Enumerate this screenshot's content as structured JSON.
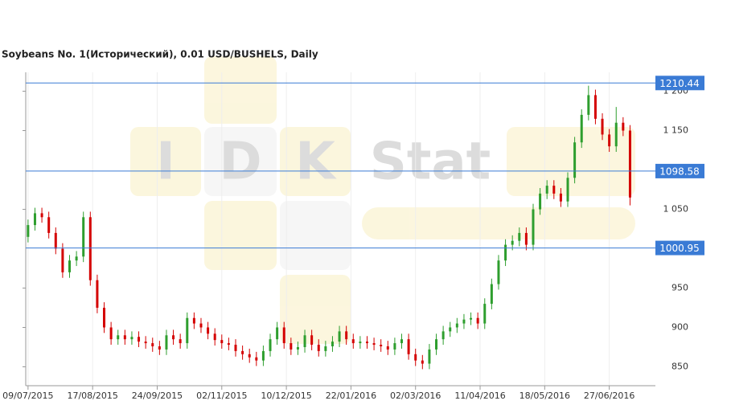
{
  "chart_data": {
    "type": "candlestick",
    "title": "Soybeans  No. 1(Исторический), 0.01 USD/BUSHELS, Daily",
    "watermark": [
      "I",
      "D",
      "K",
      "Stat"
    ],
    "xlim": [
      -1,
      272
    ],
    "xticks": [
      {
        "value": 0,
        "label": "09/07/2015"
      },
      {
        "value": 28,
        "label": "17/08/2015"
      },
      {
        "value": 56,
        "label": "24/09/2015"
      },
      {
        "value": 84,
        "label": "02/11/2015"
      },
      {
        "value": 112,
        "label": "10/12/2015"
      },
      {
        "value": 140,
        "label": "22/01/2016"
      },
      {
        "value": 168,
        "label": "02/03/2016"
      },
      {
        "value": 196,
        "label": "11/04/2016"
      },
      {
        "value": 224,
        "label": "18/05/2016"
      },
      {
        "value": 252,
        "label": "27/06/2016"
      }
    ],
    "ylim": [
      826,
      1224
    ],
    "yticks": [
      850,
      900,
      950,
      {
        "value": 1050,
        "label": "1 050"
      },
      {
        "value": 1150,
        "label": "1 150"
      },
      {
        "value": 1200,
        "label": "1 200"
      }
    ],
    "levels": [
      1210.44,
      1098.58,
      1000.95
    ],
    "up_color": "#2e9e2e",
    "down_color": "#d40000",
    "level_color": "#3a7bd5",
    "x": [
      0,
      3,
      6,
      9,
      12,
      15,
      18,
      21,
      24,
      27,
      30,
      33,
      36,
      39,
      42,
      45,
      48,
      51,
      54,
      57,
      60,
      63,
      66,
      69,
      72,
      75,
      78,
      81,
      84,
      87,
      90,
      93,
      96,
      99,
      102,
      105,
      108,
      111,
      114,
      117,
      120,
      123,
      126,
      129,
      132,
      135,
      138,
      141,
      144,
      147,
      150,
      153,
      156,
      159,
      162,
      165,
      168,
      171,
      174,
      177,
      180,
      183,
      186,
      189,
      192,
      195,
      198,
      201,
      204,
      207,
      210,
      213,
      216,
      219,
      222,
      225,
      228,
      231,
      234,
      237,
      240,
      243,
      246,
      249,
      252,
      255,
      258,
      261
    ],
    "open": [
      1015,
      1030,
      1045,
      1040,
      1020,
      1000,
      970,
      985,
      990,
      1040,
      960,
      925,
      900,
      885,
      890,
      885,
      888,
      882,
      880,
      876,
      872,
      890,
      885,
      880,
      912,
      905,
      900,
      892,
      884,
      880,
      878,
      870,
      866,
      862,
      858,
      870,
      885,
      900,
      880,
      872,
      875,
      890,
      878,
      870,
      876,
      882,
      895,
      885,
      880,
      882,
      880,
      878,
      876,
      872,
      880,
      885,
      866,
      858,
      854,
      872,
      885,
      895,
      900,
      905,
      910,
      912,
      905,
      930,
      955,
      985,
      1005,
      1010,
      1020,
      1005,
      1050,
      1070,
      1080,
      1070,
      1060,
      1090,
      1135,
      1170,
      1195,
      1165,
      1145,
      1130,
      1160,
      1150
    ],
    "high": [
      1037,
      1052,
      1052,
      1047,
      1027,
      1007,
      992,
      997,
      1047,
      1047,
      967,
      932,
      907,
      897,
      897,
      895,
      895,
      889,
      887,
      883,
      897,
      897,
      892,
      919,
      919,
      912,
      907,
      899,
      891,
      887,
      885,
      877,
      873,
      869,
      877,
      892,
      907,
      907,
      887,
      882,
      897,
      897,
      885,
      883,
      889,
      902,
      902,
      892,
      889,
      889,
      887,
      885,
      883,
      887,
      892,
      892,
      873,
      865,
      879,
      892,
      902,
      907,
      912,
      917,
      919,
      919,
      937,
      962,
      992,
      1012,
      1017,
      1027,
      1027,
      1057,
      1077,
      1087,
      1087,
      1077,
      1097,
      1142,
      1177,
      1207,
      1202,
      1172,
      1152,
      1180,
      1167,
      1157
    ],
    "low": [
      1008,
      1023,
      1033,
      1013,
      993,
      963,
      963,
      978,
      983,
      953,
      918,
      893,
      878,
      878,
      878,
      878,
      875,
      873,
      869,
      865,
      865,
      878,
      873,
      873,
      898,
      893,
      885,
      877,
      873,
      871,
      863,
      859,
      855,
      851,
      851,
      863,
      878,
      873,
      865,
      865,
      868,
      871,
      863,
      863,
      869,
      875,
      878,
      873,
      873,
      873,
      871,
      869,
      865,
      865,
      873,
      859,
      851,
      847,
      847,
      865,
      878,
      888,
      893,
      898,
      903,
      898,
      898,
      923,
      948,
      978,
      998,
      1003,
      998,
      998,
      1043,
      1063,
      1063,
      1053,
      1053,
      1083,
      1128,
      1163,
      1158,
      1138,
      1123,
      1123,
      1143,
      1055
    ],
    "close": [
      1030,
      1045,
      1040,
      1020,
      1000,
      970,
      985,
      990,
      1040,
      960,
      925,
      900,
      885,
      890,
      885,
      888,
      882,
      880,
      876,
      872,
      890,
      885,
      880,
      912,
      905,
      900,
      892,
      884,
      880,
      878,
      870,
      866,
      862,
      858,
      870,
      885,
      900,
      880,
      872,
      875,
      890,
      878,
      870,
      876,
      882,
      895,
      885,
      880,
      882,
      880,
      878,
      876,
      872,
      880,
      885,
      866,
      858,
      854,
      872,
      885,
      895,
      900,
      905,
      910,
      912,
      905,
      930,
      955,
      985,
      1005,
      1010,
      1020,
      1005,
      1050,
      1070,
      1080,
      1070,
      1060,
      1090,
      1135,
      1170,
      1195,
      1165,
      1145,
      1130,
      1160,
      1150,
      1065
    ]
  }
}
